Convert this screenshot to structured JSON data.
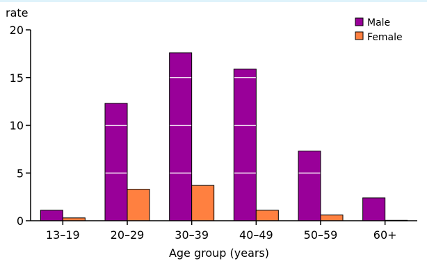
{
  "chart_data": {
    "type": "bar",
    "title": "",
    "xlabel": "Age group (years)",
    "ylabel": "rate",
    "ylim": [
      0,
      20
    ],
    "yticks": [
      0,
      5,
      10,
      15,
      20
    ],
    "grid": "horizontal white lines inside bars",
    "legend_position": "top-right",
    "categories": [
      "13–19",
      "20–29",
      "30–39",
      "40–49",
      "50–59",
      "60+"
    ],
    "series": [
      {
        "name": "Male",
        "color": "#990099",
        "values": [
          1.1,
          12.3,
          17.6,
          15.9,
          7.3,
          2.4
        ]
      },
      {
        "name": "Female",
        "color": "#ff8040",
        "values": [
          0.3,
          3.3,
          3.7,
          1.1,
          0.6,
          0.05
        ]
      }
    ]
  }
}
